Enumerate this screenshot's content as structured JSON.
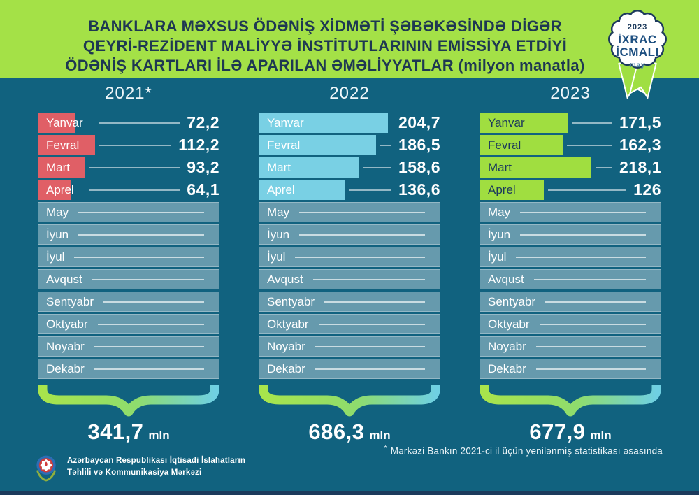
{
  "palette": {
    "header_green": "#a4e147",
    "background_teal": "#11627f",
    "navy": "#1c3a5c",
    "title_text": "#1e3852",
    "badge_blue": "#1d4f80",
    "badge_month_teal": "#4d89a8",
    "bar_red_2021": "#e05f66",
    "bar_blue_2022": "#79d0e4",
    "bar_green_2023": "#a0de40",
    "brace_gradient": [
      "#a8e44c",
      "#8edc6e",
      "#6fd0e2"
    ],
    "ribbon_green": "#9fdf43",
    "value_text": "#ffffff"
  },
  "header": {
    "title_lines": [
      "BANKLARA MƏXSUS ÖDƏNİŞ XİDMƏTİ ŞƏBƏKƏSİNDƏ DİGƏR",
      "QEYRİ-REZİDENT MALİYYƏ İNSTİTUTLARININ EMİSSİYA ETDİYİ",
      "ÖDƏNİŞ KARTLARI İLƏ APARILAN ƏMƏLİYYATLAR"
    ],
    "unit_label": "(milyon manatla)"
  },
  "badge": {
    "year": "2023",
    "title_line1": "İXRAC",
    "title_line2": "İCMALI",
    "month": "may"
  },
  "chart_data": {
    "type": "bar",
    "orientation": "horizontal",
    "title": "BANKLARA MƏXSUS ÖDƏNİŞ XİDMƏTİ ŞƏBƏKƏSİNDƏ DİGƏR QEYRİ-REZİDENT MALİYYƏ İNSTİTUTLARININ EMİSSİYA ETDİYİ ÖDƏNİŞ KARTLARI İLƏ APARILAN ƏMƏLİYYATLAR",
    "unit": "milyon manatla",
    "categories": [
      "Yanvar",
      "Fevral",
      "Mart",
      "Aprel",
      "May",
      "İyun",
      "İyul",
      "Avqust",
      "Sentyabr",
      "Oktyabr",
      "Noyabr",
      "Dekabr"
    ],
    "active_month_count": 4,
    "series": [
      {
        "name": "2021*",
        "values": [
          72.2,
          112.2,
          93.2,
          64.1
        ],
        "display_values": [
          "72,2",
          "112,2",
          "93,2",
          "64,1"
        ],
        "total": 341.7,
        "total_display": "341,7",
        "total_unit": "mln",
        "bar_color": "#e05f66",
        "label_color": "#ffffff",
        "bar_scale_max": 355
      },
      {
        "name": "2022",
        "values": [
          204.7,
          186.5,
          158.6,
          136.6
        ],
        "display_values": [
          "204,7",
          "186,5",
          "158,6",
          "136,6"
        ],
        "total": 686.3,
        "total_display": "686,3",
        "total_unit": "mln",
        "bar_color": "#79d0e4",
        "label_color": "#ffffff",
        "bar_scale_max": 288
      },
      {
        "name": "2023",
        "values": [
          171.5,
          162.3,
          218.1,
          126
        ],
        "display_values": [
          "171,5",
          "162,3",
          "218,1",
          "126"
        ],
        "total": 677.9,
        "total_display": "677,9",
        "total_unit": "mln",
        "bar_color": "#a0de40",
        "label_color": "#1c3a5c",
        "bar_scale_max": 355
      }
    ]
  },
  "footnote": {
    "marker": "*",
    "text": "Mərkəzi Bankın 2021-ci il üçün yenilənmiş statistikası əsasında"
  },
  "footer": {
    "org_lines": [
      "Azərbaycan Respublikası İqtisadi İslahatların",
      "Təhlili və Kommunikasiya Mərkəzi"
    ]
  }
}
